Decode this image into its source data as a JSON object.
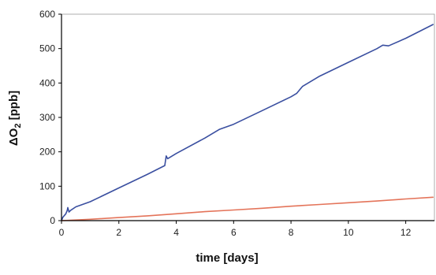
{
  "chart_data": {
    "type": "line",
    "title": "",
    "xlabel": "time  [days]",
    "ylabel": {
      "base": "ΔO",
      "sub": "2",
      "unit": " [ppb]"
    },
    "xlim": [
      0,
      13
    ],
    "ylim": [
      0,
      600
    ],
    "x_ticks": [
      0,
      2,
      4,
      6,
      8,
      10,
      12
    ],
    "y_ticks": [
      0,
      100,
      200,
      300,
      400,
      500,
      600
    ],
    "grid": false,
    "legend": "none",
    "series": [
      {
        "color": "#3a4fa0",
        "x": [
          0,
          0.05,
          0.15,
          0.2,
          0.22,
          0.26,
          0.32,
          0.5,
          1,
          2,
          3,
          3.6,
          3.65,
          3.7,
          4,
          5,
          5.5,
          6,
          7,
          8,
          8.2,
          8.4,
          9,
          10,
          11,
          11.2,
          11.4,
          12,
          12.95
        ],
        "y": [
          0,
          10,
          20,
          30,
          38,
          25,
          30,
          40,
          55,
          95,
          135,
          160,
          188,
          180,
          195,
          240,
          265,
          280,
          320,
          360,
          370,
          390,
          420,
          460,
          500,
          510,
          508,
          530,
          570
        ]
      },
      {
        "color": "#e4745a",
        "x": [
          0,
          1,
          2,
          3,
          4,
          5,
          6,
          7,
          8,
          9,
          10,
          11,
          12,
          12.95
        ],
        "y": [
          0,
          4,
          9,
          14,
          20,
          26,
          31,
          36,
          42,
          47,
          52,
          57,
          63,
          68
        ]
      }
    ]
  }
}
